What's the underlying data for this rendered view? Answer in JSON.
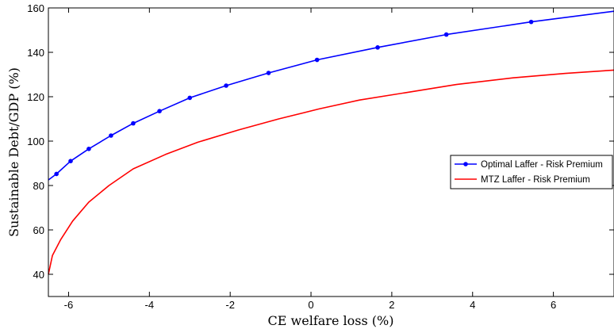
{
  "chart_data": {
    "type": "line",
    "xlabel": "CE welfare loss (%)",
    "ylabel": "Sustainable Debt/GDP (%)",
    "xlim": [
      -6.5,
      7.5
    ],
    "ylim": [
      30,
      160
    ],
    "xticks": [
      -6,
      -4,
      -2,
      0,
      2,
      4,
      6
    ],
    "yticks": [
      40,
      60,
      80,
      100,
      120,
      140,
      160
    ],
    "grid": false,
    "legend_position": "right",
    "series": [
      {
        "name": "Optimal Laffer - Risk Premium",
        "color": "#0000ff",
        "marker": "dot",
        "x": [
          -6.5,
          -6.3,
          -5.95,
          -5.5,
          -4.95,
          -4.4,
          -3.75,
          -3.0,
          -2.1,
          -1.05,
          0.15,
          1.65,
          3.35,
          5.45,
          7.5
        ],
        "y": [
          82.5,
          85.2,
          91.0,
          96.5,
          102.5,
          108.0,
          113.5,
          119.5,
          125.0,
          130.7,
          136.6,
          142.2,
          148.0,
          153.7,
          158.5
        ],
        "marker_x": [
          -6.3,
          -5.95,
          -5.5,
          -4.95,
          -4.4,
          -3.75,
          -3.0,
          -2.1,
          -1.05,
          0.15,
          1.65,
          3.35,
          5.45
        ]
      },
      {
        "name": "MTZ Laffer - Risk Premium",
        "color": "#ff0000",
        "marker": "none",
        "x": [
          -6.5,
          -6.4,
          -6.2,
          -5.9,
          -5.5,
          -5.0,
          -4.4,
          -3.6,
          -2.8,
          -1.8,
          -0.8,
          0.2,
          1.2,
          2.4,
          3.6,
          5.0,
          6.3,
          7.5
        ],
        "y": [
          40,
          48.5,
          55.5,
          64.0,
          72.5,
          80.0,
          87.5,
          94.0,
          99.5,
          105.0,
          110.0,
          114.5,
          118.5,
          122.0,
          125.5,
          128.5,
          130.5,
          132.0
        ]
      }
    ]
  }
}
